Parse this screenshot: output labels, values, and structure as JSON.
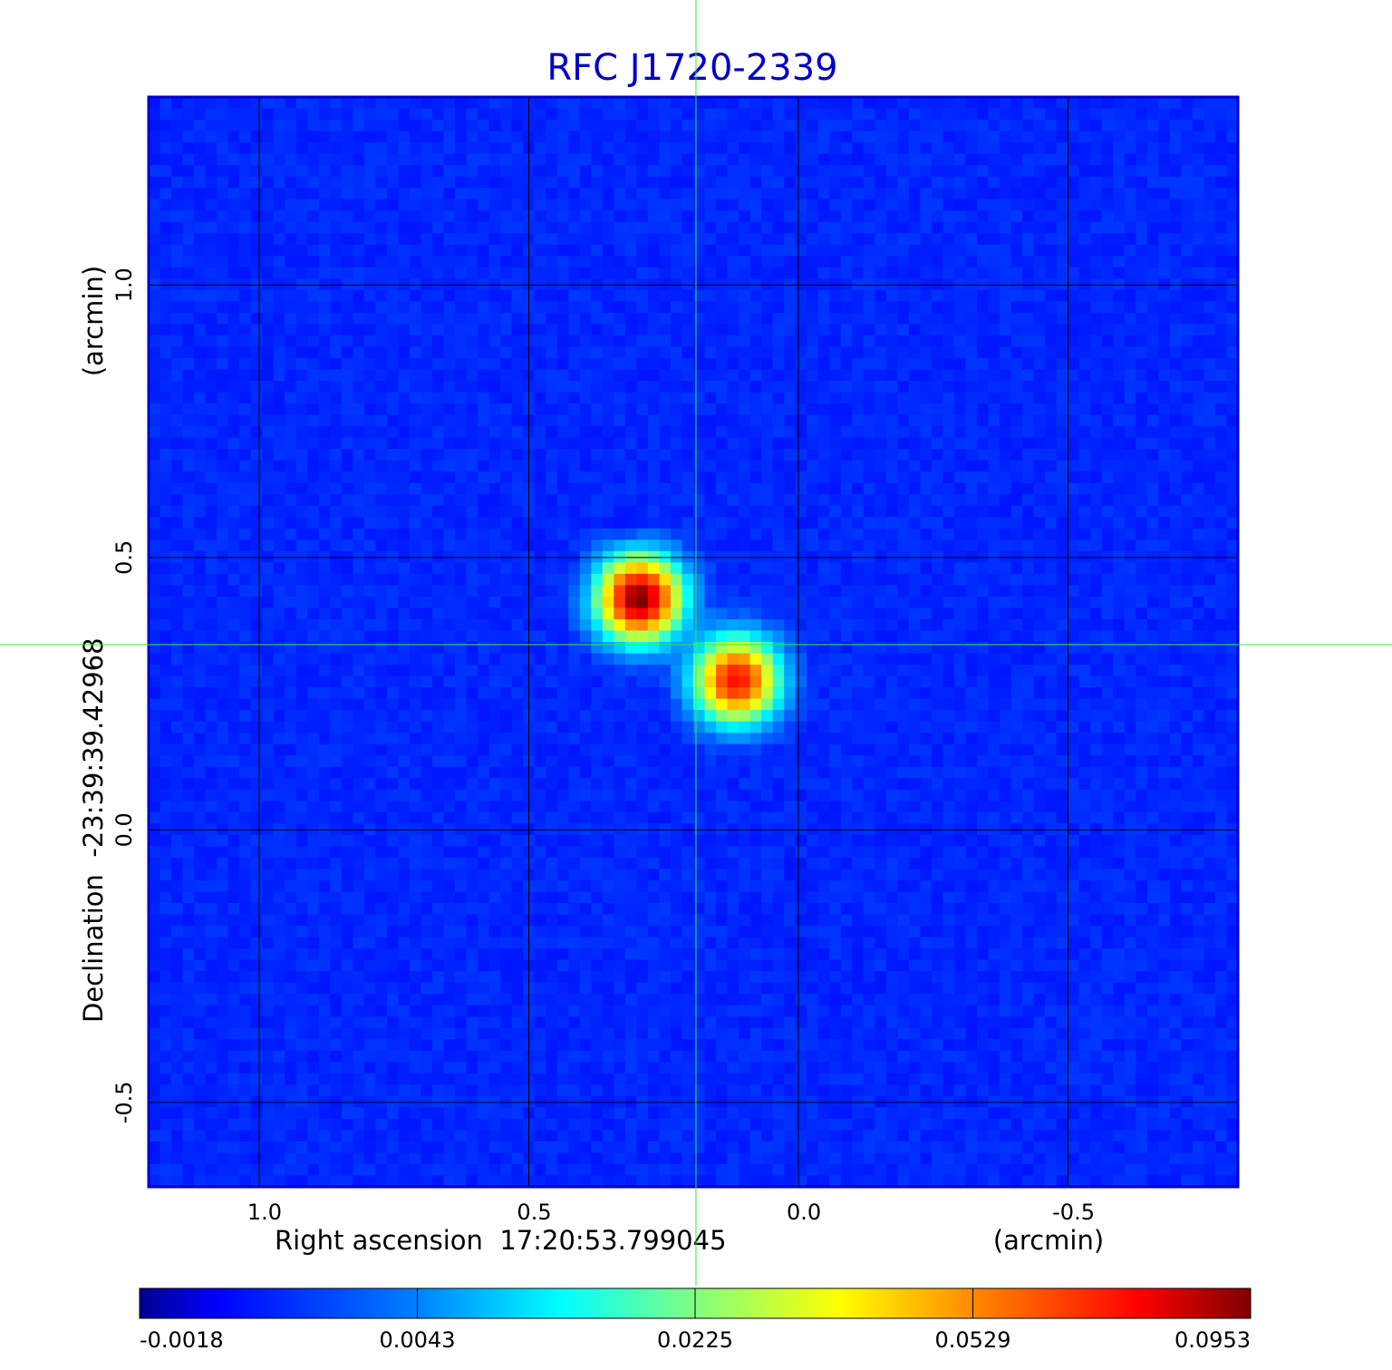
{
  "chart_data": {
    "type": "heatmap",
    "title": "RFC J1720-2339",
    "xlabel": "Right ascension  17:20:53.799045",
    "xunit": "(arcmin)",
    "ylabel": "Declination  -23:39:39.42968",
    "yunit": "(arcmin)",
    "x_ticks": [
      {
        "value": 1.0,
        "label": "1.0"
      },
      {
        "value": 0.5,
        "label": "0.5"
      },
      {
        "value": 0.0,
        "label": "0.0"
      },
      {
        "value": -0.5,
        "label": "-0.5"
      }
    ],
    "y_ticks": [
      {
        "value": 1.0,
        "label": "1.0"
      },
      {
        "value": 0.5,
        "label": "0.5"
      },
      {
        "value": 0.0,
        "label": "0.0"
      },
      {
        "value": -0.5,
        "label": "-0.5"
      }
    ],
    "xlim": [
      1.205,
      -0.815
    ],
    "ylim": [
      -0.655,
      1.345
    ],
    "grid": true,
    "crosshair": {
      "x": 0.19,
      "y": 0.34,
      "color": "#33ee33"
    },
    "colorbar": {
      "position": "bottom",
      "scale": "nonlinear",
      "labels": [
        "-0.0018",
        "0.0043",
        "0.0225",
        "0.0529",
        "0.0953"
      ],
      "colors": [
        "#00008f",
        "#0000ff",
        "#0080ff",
        "#00ffff",
        "#80ff80",
        "#ffff00",
        "#ff8000",
        "#ff0000",
        "#800000"
      ]
    },
    "background_level": 0.0012,
    "components": [
      {
        "x": 0.295,
        "y": 0.425,
        "peak": 0.0953
      },
      {
        "x": 0.115,
        "y": 0.275,
        "peak": 0.075
      }
    ],
    "negative_features": [
      {
        "x": 0.32,
        "y": 0.55,
        "value": -0.0015
      },
      {
        "x": 0.39,
        "y": 0.45,
        "value": -0.0012
      }
    ]
  }
}
